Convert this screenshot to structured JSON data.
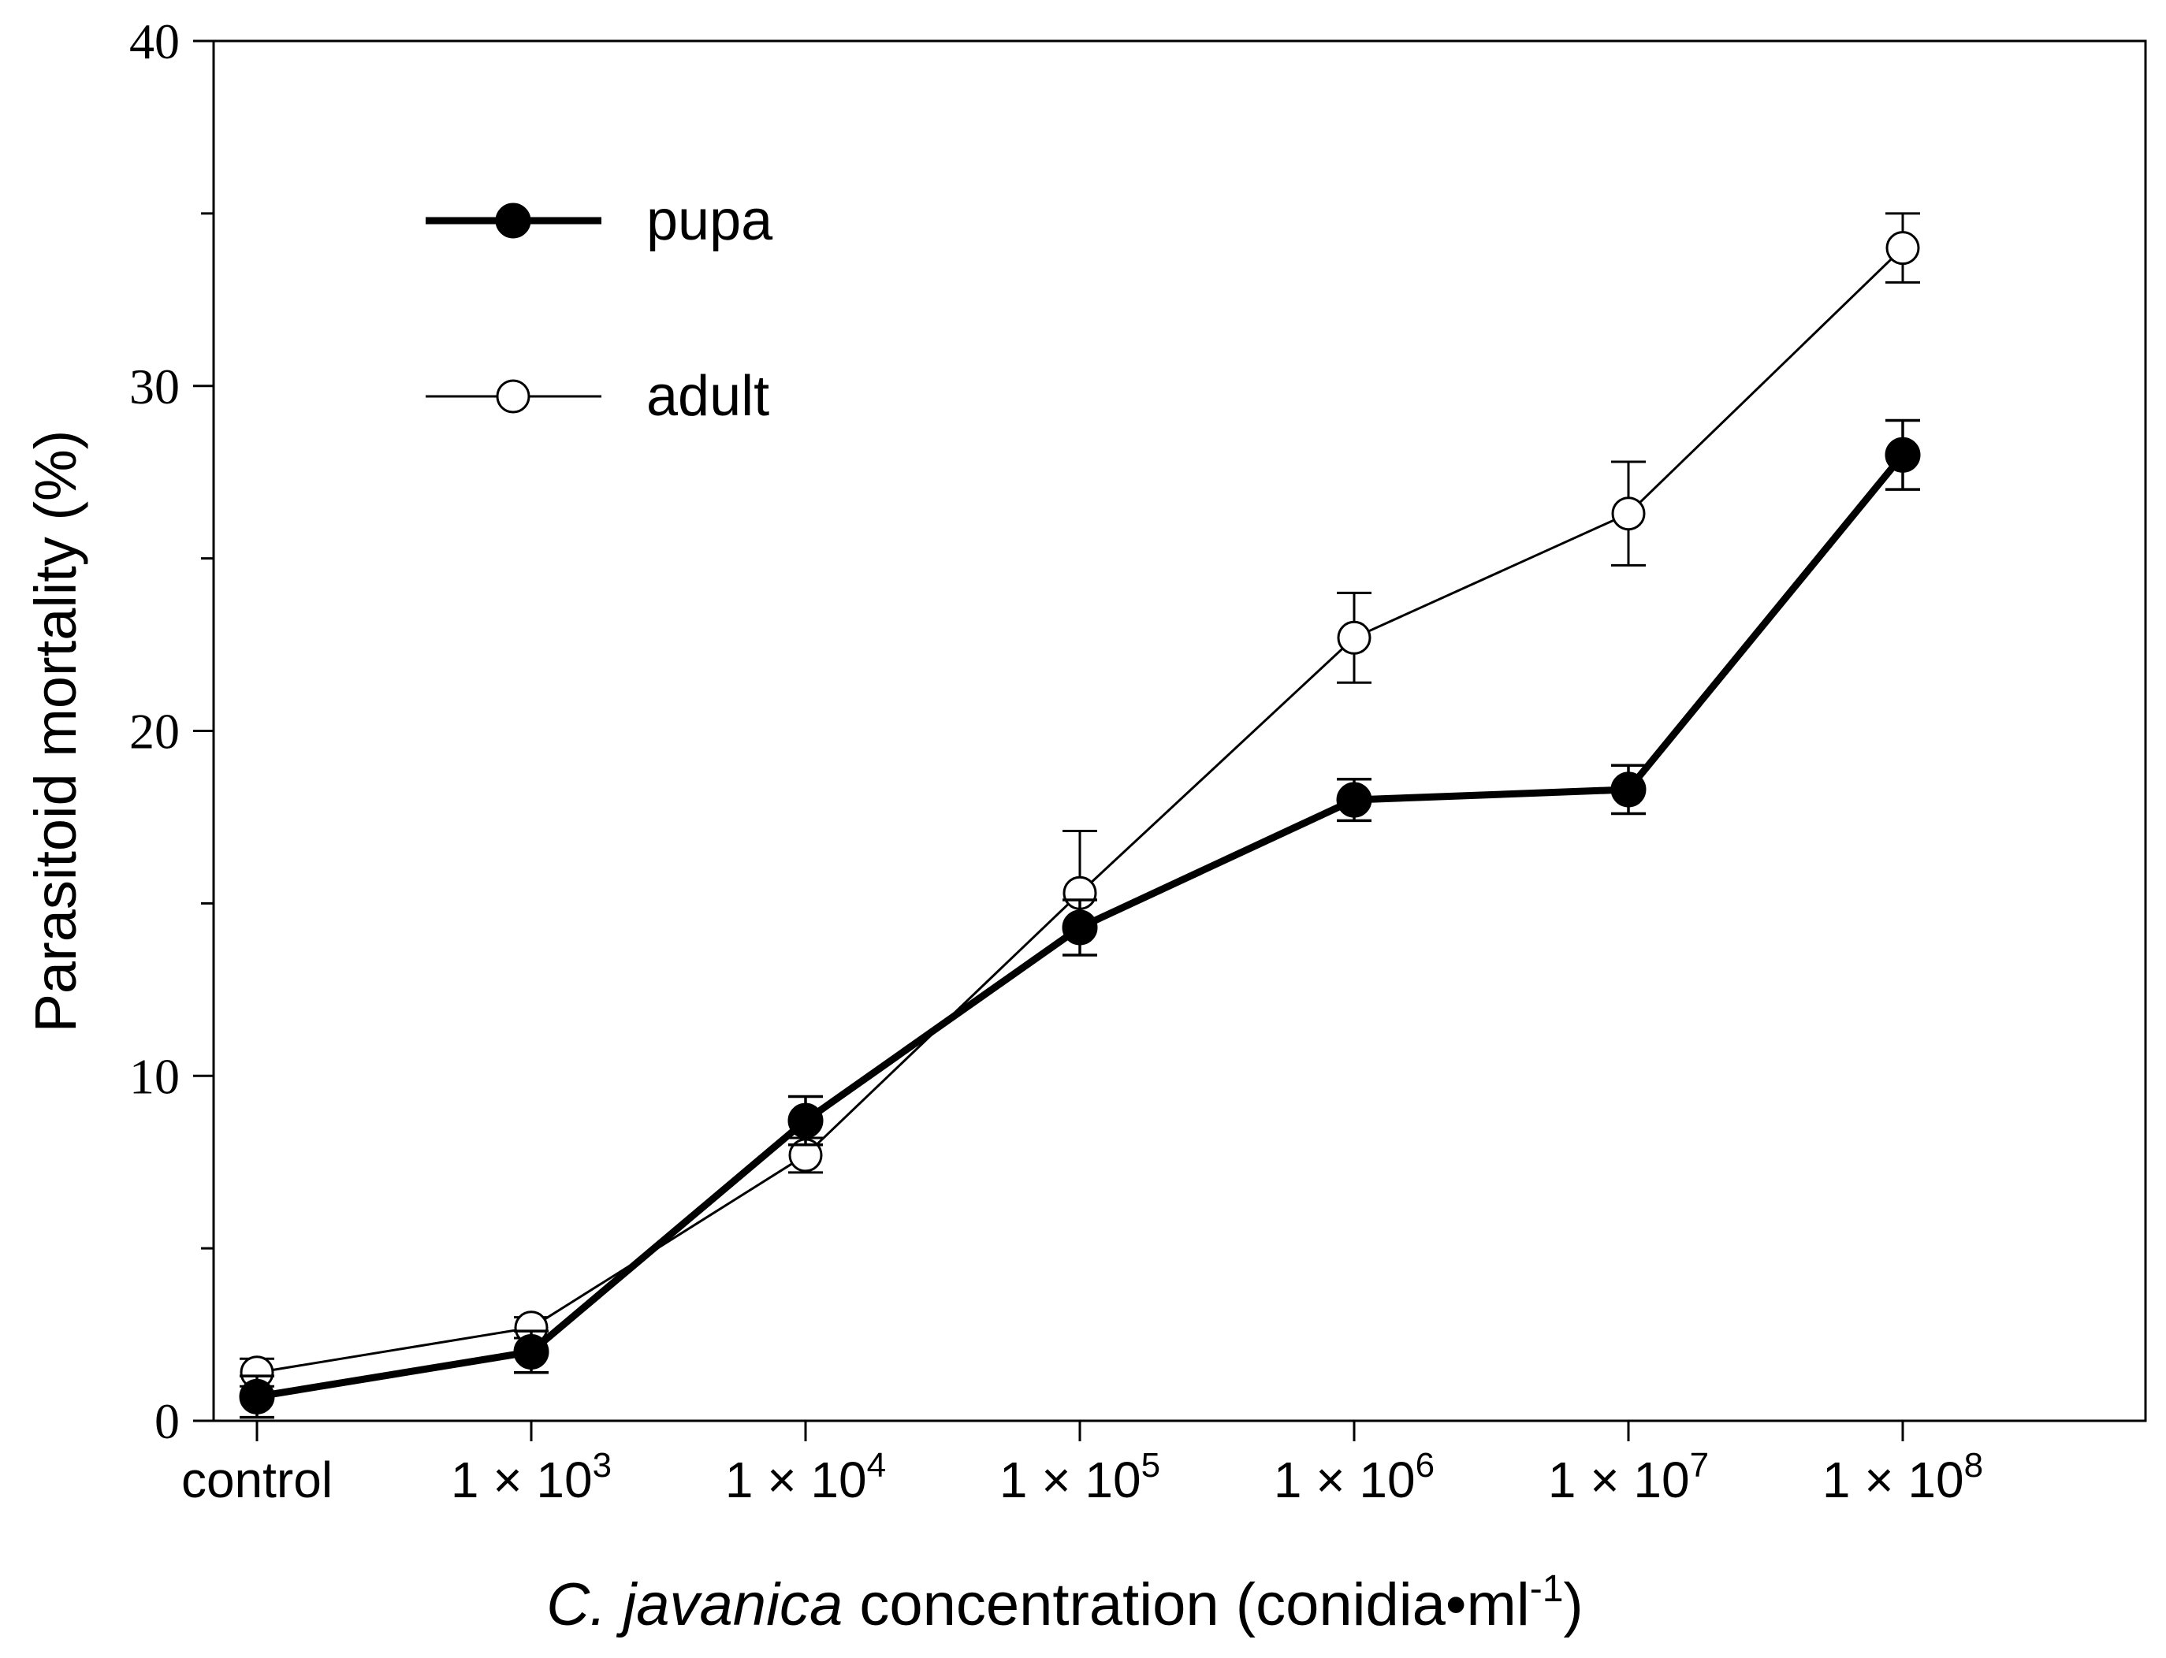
{
  "chart_data": {
    "type": "line",
    "title": "",
    "xlabel": {
      "italic": "C. javanica",
      "rest": " concentration (conidia•ml",
      "sup": "-1",
      "close": ")"
    },
    "ylabel": "Parasitoid mortality (%)",
    "ylim": [
      0,
      40
    ],
    "yticks": [
      0,
      10,
      20,
      30,
      40
    ],
    "categories": [
      {
        "base": "control",
        "exp": ""
      },
      {
        "base": "1 × 10",
        "exp": "3"
      },
      {
        "base": "1 × 10",
        "exp": "4"
      },
      {
        "base": "1 × 10",
        "exp": "5"
      },
      {
        "base": "1 × 10",
        "exp": "6"
      },
      {
        "base": "1 × 10",
        "exp": "7"
      },
      {
        "base": "1 × 10",
        "exp": "8"
      }
    ],
    "series": [
      {
        "name": "pupa",
        "marker": "filled-circle",
        "values": [
          0.7,
          2.0,
          8.7,
          14.3,
          18.0,
          18.3,
          28.0
        ],
        "errors": [
          0.6,
          0.6,
          0.7,
          0.8,
          0.6,
          0.7,
          1.0
        ]
      },
      {
        "name": "adult",
        "marker": "open-circle",
        "values": [
          1.4,
          2.7,
          7.7,
          15.3,
          22.7,
          26.3,
          34.0
        ],
        "errors": [
          0.4,
          0.3,
          0.5,
          1.8,
          1.3,
          1.5,
          1.0
        ]
      }
    ],
    "legend_position": "top-left",
    "grid": false
  },
  "colors": {
    "line": "#000000",
    "filled_marker": "#000000",
    "open_marker_fill": "#ffffff",
    "background": "#ffffff"
  }
}
